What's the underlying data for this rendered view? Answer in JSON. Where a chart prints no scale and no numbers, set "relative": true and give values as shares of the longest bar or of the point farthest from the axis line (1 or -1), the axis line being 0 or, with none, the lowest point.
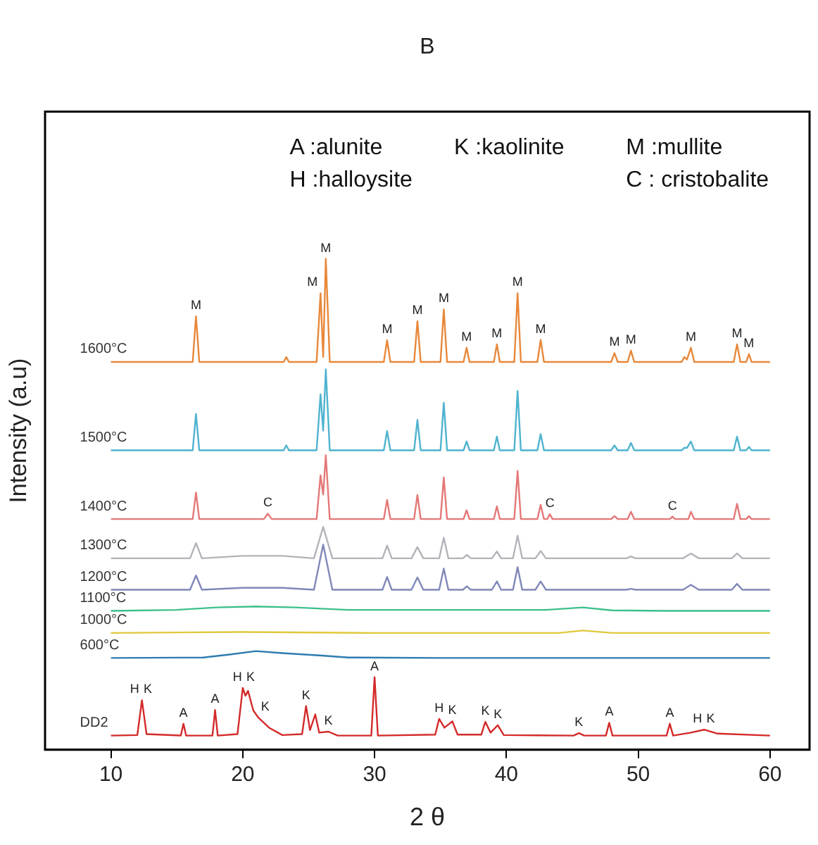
{
  "chart_data": {
    "type": "line",
    "title": "B",
    "xlabel": "2 θ",
    "ylabel": "Intensity (a.u)",
    "relative": true,
    "tick_labels": "x",
    "legend": false,
    "grid": false,
    "marker": "none",
    "line_style": "solid",
    "xlim": [
      5,
      63
    ],
    "xticks": [
      10,
      20,
      30,
      40,
      50,
      60
    ],
    "series": [
      {
        "name": "1600°C",
        "color": "#e8883a",
        "x": [
          10,
          16.2,
          16.45,
          16.7,
          23.1,
          23.3,
          23.5,
          25.6,
          25.9,
          26.1,
          26.3,
          26.6,
          30.7,
          30.95,
          31.2,
          33.0,
          33.25,
          33.5,
          35.0,
          35.25,
          35.5,
          36.75,
          36.98,
          37.2,
          39.05,
          39.28,
          39.5,
          40.6,
          40.85,
          41.1,
          42.35,
          42.6,
          42.85,
          47.95,
          48.2,
          48.45,
          49.2,
          49.45,
          49.7,
          53.3,
          53.5,
          53.7,
          54.0,
          54.25,
          57.25,
          57.5,
          57.75,
          58.2,
          58.4,
          58.6,
          60
        ],
        "values": [
          0.79,
          0.79,
          0.883,
          0.79,
          0.79,
          0.8,
          0.79,
          0.79,
          0.93,
          0.8,
          1,
          0.79,
          0.79,
          0.834,
          0.79,
          0.79,
          0.873,
          0.79,
          0.79,
          0.897,
          0.79,
          0.79,
          0.819,
          0.79,
          0.79,
          0.826,
          0.79,
          0.79,
          0.93,
          0.79,
          0.79,
          0.835,
          0.79,
          0.79,
          0.808,
          0.79,
          0.79,
          0.813,
          0.79,
          0.79,
          0.8,
          0.795,
          0.819,
          0.79,
          0.79,
          0.826,
          0.79,
          0.79,
          0.806,
          0.79,
          0.79
        ]
      },
      {
        "name": "1500°C",
        "color": "#4fb3cf",
        "x": [
          10,
          16.2,
          16.45,
          16.7,
          23.1,
          23.3,
          23.5,
          25.6,
          25.9,
          26.1,
          26.3,
          26.6,
          30.7,
          30.95,
          31.2,
          33.0,
          33.25,
          33.5,
          35.0,
          35.25,
          35.5,
          36.75,
          36.98,
          37.2,
          39.05,
          39.28,
          39.5,
          40.6,
          40.85,
          41.1,
          42.35,
          42.6,
          42.85,
          47.95,
          48.2,
          48.45,
          49.2,
          49.45,
          49.7,
          53.3,
          53.5,
          53.7,
          54.0,
          54.25,
          57.25,
          57.5,
          57.75,
          58.2,
          58.4,
          58.6,
          60
        ],
        "values": [
          0.61,
          0.61,
          0.684,
          0.61,
          0.61,
          0.62,
          0.61,
          0.61,
          0.724,
          0.65,
          0.775,
          0.61,
          0.61,
          0.649,
          0.61,
          0.61,
          0.672,
          0.61,
          0.61,
          0.707,
          0.61,
          0.61,
          0.628,
          0.61,
          0.61,
          0.638,
          0.61,
          0.61,
          0.731,
          0.61,
          0.61,
          0.643,
          0.61,
          0.61,
          0.62,
          0.61,
          0.61,
          0.625,
          0.61,
          0.61,
          0.615,
          0.615,
          0.628,
          0.61,
          0.61,
          0.638,
          0.61,
          0.61,
          0.617,
          0.61,
          0.61
        ]
      },
      {
        "name": "1400°C",
        "color": "#e57878",
        "x": [
          10,
          16.2,
          16.45,
          16.7,
          21.6,
          21.9,
          22.2,
          25.6,
          25.9,
          26.1,
          26.3,
          26.6,
          30.7,
          30.95,
          31.2,
          33.0,
          33.25,
          33.5,
          35.0,
          35.25,
          35.5,
          36.75,
          36.98,
          37.2,
          39.05,
          39.28,
          39.5,
          40.6,
          40.85,
          41.1,
          42.35,
          42.6,
          42.85,
          43.1,
          43.3,
          43.5,
          47.95,
          48.2,
          48.45,
          49.2,
          49.45,
          49.7,
          52.4,
          52.6,
          52.8,
          53.8,
          54.0,
          54.25,
          57.25,
          57.5,
          57.75,
          58.2,
          58.4,
          58.6,
          60
        ],
        "values": [
          0.47,
          0.47,
          0.524,
          0.47,
          0.47,
          0.481,
          0.47,
          0.47,
          0.559,
          0.52,
          0.6,
          0.47,
          0.47,
          0.509,
          0.47,
          0.47,
          0.519,
          0.47,
          0.47,
          0.555,
          0.47,
          0.47,
          0.488,
          0.47,
          0.47,
          0.496,
          0.47,
          0.47,
          0.568,
          0.47,
          0.47,
          0.499,
          0.47,
          0.47,
          0.48,
          0.47,
          0.47,
          0.476,
          0.47,
          0.47,
          0.485,
          0.47,
          0.47,
          0.475,
          0.47,
          0.47,
          0.485,
          0.47,
          0.47,
          0.501,
          0.47,
          0.47,
          0.476,
          0.47,
          0.47
        ]
      },
      {
        "name": "1300°C",
        "color": "#b3b3ba",
        "x": [
          10,
          16.0,
          16.45,
          16.9,
          20,
          23,
          25.4,
          26.1,
          26.8,
          30.6,
          30.95,
          31.3,
          32.8,
          33.25,
          33.7,
          34.9,
          35.25,
          35.6,
          36.7,
          37.0,
          37.3,
          38.9,
          39.28,
          39.6,
          40.5,
          40.85,
          41.2,
          42.2,
          42.6,
          43.0,
          49.1,
          49.45,
          49.8,
          53.4,
          54.0,
          54.6,
          57.1,
          57.5,
          57.9,
          60
        ],
        "values": [
          0.39,
          0.39,
          0.421,
          0.39,
          0.395,
          0.395,
          0.39,
          0.454,
          0.39,
          0.39,
          0.416,
          0.39,
          0.39,
          0.413,
          0.39,
          0.39,
          0.432,
          0.39,
          0.39,
          0.397,
          0.39,
          0.39,
          0.404,
          0.39,
          0.39,
          0.436,
          0.39,
          0.39,
          0.405,
          0.39,
          0.39,
          0.394,
          0.39,
          0.39,
          0.4,
          0.39,
          0.39,
          0.4,
          0.39,
          0.39
        ]
      },
      {
        "name": "1200°C",
        "color": "#8088b8",
        "x": [
          10,
          16.0,
          16.45,
          16.9,
          20,
          23,
          25.4,
          26.1,
          26.8,
          30.6,
          30.95,
          31.3,
          32.8,
          33.25,
          33.7,
          34.9,
          35.25,
          35.6,
          36.7,
          37.0,
          37.3,
          38.9,
          39.28,
          39.6,
          40.5,
          40.85,
          41.2,
          42.2,
          42.6,
          43.0,
          49.1,
          49.45,
          49.8,
          53.4,
          54.0,
          54.6,
          57.1,
          57.5,
          57.9,
          60
        ],
        "values": [
          0.326,
          0.326,
          0.355,
          0.326,
          0.33,
          0.33,
          0.326,
          0.418,
          0.326,
          0.326,
          0.352,
          0.326,
          0.326,
          0.351,
          0.326,
          0.326,
          0.369,
          0.326,
          0.326,
          0.333,
          0.326,
          0.326,
          0.343,
          0.326,
          0.326,
          0.372,
          0.326,
          0.326,
          0.343,
          0.326,
          0.326,
          0.328,
          0.326,
          0.326,
          0.336,
          0.326,
          0.326,
          0.338,
          0.326,
          0.326
        ]
      },
      {
        "name": "1100°C",
        "color": "#3cc08a",
        "x": [
          10,
          15,
          18,
          21,
          24,
          28,
          35,
          43,
          45.8,
          48,
          52,
          60
        ],
        "values": [
          0.283,
          0.285,
          0.29,
          0.292,
          0.29,
          0.285,
          0.285,
          0.285,
          0.29,
          0.284,
          0.283,
          0.283
        ]
      },
      {
        "name": "1000°C",
        "color": "#e0c83c",
        "x": [
          10,
          20,
          30,
          44,
          45.8,
          48,
          60
        ],
        "values": [
          0.238,
          0.24,
          0.238,
          0.238,
          0.243,
          0.238,
          0.238
        ]
      },
      {
        "name": "600°C",
        "color": "#2e7bb0",
        "x": [
          10,
          17,
          19,
          21,
          23,
          26,
          28,
          35,
          45,
          60
        ],
        "values": [
          0.187,
          0.188,
          0.194,
          0.201,
          0.197,
          0.192,
          0.188,
          0.187,
          0.187,
          0.187
        ]
      },
      {
        "name": "DD2",
        "color": "#d42a2a",
        "x": [
          10,
          12.0,
          12.35,
          12.7,
          15.3,
          15.5,
          15.7,
          17.7,
          17.9,
          18.1,
          19.6,
          20.0,
          20.2,
          20.4,
          20.8,
          21.2,
          22,
          23,
          24.5,
          24.8,
          25.1,
          25.5,
          25.8,
          26.5,
          27.2,
          29.75,
          30.0,
          30.25,
          34.6,
          34.9,
          35.3,
          35.9,
          36.3,
          38.1,
          38.4,
          38.8,
          39.35,
          39.8,
          45.1,
          45.5,
          45.9,
          47.55,
          47.8,
          48.05,
          52.15,
          52.4,
          52.65,
          54,
          55,
          56,
          60
        ],
        "values": [
          0.029,
          0.03,
          0.101,
          0.032,
          0.029,
          0.053,
          0.029,
          0.029,
          0.081,
          0.029,
          0.032,
          0.126,
          0.11,
          0.12,
          0.08,
          0.065,
          0.045,
          0.03,
          0.032,
          0.089,
          0.04,
          0.072,
          0.035,
          0.037,
          0.029,
          0.029,
          0.148,
          0.029,
          0.031,
          0.063,
          0.045,
          0.058,
          0.031,
          0.031,
          0.057,
          0.035,
          0.05,
          0.03,
          0.029,
          0.034,
          0.029,
          0.029,
          0.055,
          0.029,
          0.029,
          0.053,
          0.029,
          0.035,
          0.041,
          0.033,
          0.029
        ]
      }
    ],
    "annotations": [
      "A :alunite",
      "K :kaolinite",
      "M :mullite",
      "H :halloysite",
      "C : cristobalite",
      {
        "text": "M",
        "x": 16.45,
        "y": 0.883
      },
      {
        "text": "M",
        "x": 25.9,
        "y": 0.93
      },
      {
        "text": "M",
        "x": 26.3,
        "y": 1
      },
      {
        "text": "M",
        "x": 30.95,
        "y": 0.834
      },
      {
        "text": "M",
        "x": 33.25,
        "y": 0.873
      },
      {
        "text": "M",
        "x": 35.25,
        "y": 0.897
      },
      {
        "text": "M",
        "x": 36.98,
        "y": 0.819
      },
      {
        "text": "M",
        "x": 39.28,
        "y": 0.826
      },
      {
        "text": "M",
        "x": 40.85,
        "y": 0.93
      },
      {
        "text": "M",
        "x": 42.6,
        "y": 0.835
      },
      {
        "text": "M",
        "x": 48.2,
        "y": 0.808
      },
      {
        "text": "M",
        "x": 49.45,
        "y": 0.813
      },
      {
        "text": "M",
        "x": 54.0,
        "y": 0.819
      },
      {
        "text": "M",
        "x": 57.5,
        "y": 0.826
      },
      {
        "text": "M",
        "x": 58.4,
        "y": 0.806
      },
      {
        "text": "C",
        "x": 21.9,
        "y": 0.481
      },
      {
        "text": "C",
        "x": 43.3,
        "y": 0.48
      },
      {
        "text": "C",
        "x": 52.6,
        "y": 0.475
      },
      {
        "text": "H",
        "x": 11.8,
        "y": 0.101
      },
      {
        "text": "K",
        "x": 12.8,
        "y": 0.101
      },
      {
        "text": "A",
        "x": 15.5,
        "y": 0.053
      },
      {
        "text": "A",
        "x": 17.9,
        "y": 0.081
      },
      {
        "text": "H",
        "x": 19.6,
        "y": 0.126
      },
      {
        "text": "K",
        "x": 20.6,
        "y": 0.126
      },
      {
        "text": "K",
        "x": 21.7,
        "y": 0.065
      },
      {
        "text": "K",
        "x": 24.8,
        "y": 0.089
      },
      {
        "text": "K",
        "x": 26.5,
        "y": 0.037
      },
      {
        "text": "A",
        "x": 30.0,
        "y": 0.148
      },
      {
        "text": "H",
        "x": 34.9,
        "y": 0.063
      },
      {
        "text": "K",
        "x": 35.9,
        "y": 0.058
      },
      {
        "text": "K",
        "x": 38.4,
        "y": 0.057
      },
      {
        "text": "K",
        "x": 39.35,
        "y": 0.05
      },
      {
        "text": "K",
        "x": 45.5,
        "y": 0.034
      },
      {
        "text": "A",
        "x": 47.8,
        "y": 0.055
      },
      {
        "text": "A",
        "x": 52.4,
        "y": 0.053
      },
      {
        "text": "H",
        "x": 54.5,
        "y": 0.041
      },
      {
        "text": "K",
        "x": 55.5,
        "y": 0.041
      }
    ]
  }
}
